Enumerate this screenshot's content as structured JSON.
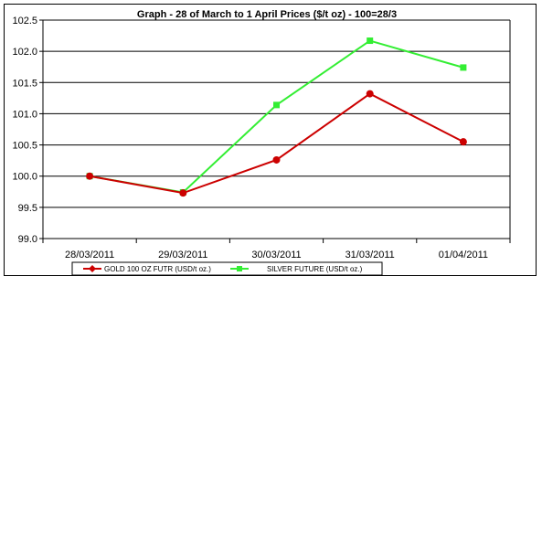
{
  "chart_data": {
    "type": "line",
    "title": "Graph - 28 of March to 1 April Prices ($/t oz) - 100=28/3",
    "categories": [
      "28/03/2011",
      "29/03/2011",
      "30/03/2011",
      "31/03/2011",
      "01/04/2011"
    ],
    "y_ticks": [
      "99.0",
      "99.5",
      "100.0",
      "100.5",
      "101.0",
      "101.5",
      "102.0",
      "102.5"
    ],
    "ylim": [
      99.0,
      102.5
    ],
    "grid": "horizontal",
    "legend_position": "bottom",
    "series": [
      {
        "name": "GOLD 100 OZ FUTR (USD/t oz.)",
        "color": "#cc0000",
        "marker": "diamond",
        "values": [
          100.0,
          99.73,
          100.26,
          101.32,
          100.55
        ]
      },
      {
        "name": "SILVER FUTURE (USD/t oz.)",
        "color": "#33ee33",
        "marker": "square",
        "values": [
          100.0,
          99.74,
          101.14,
          102.17,
          101.74
        ]
      }
    ]
  }
}
